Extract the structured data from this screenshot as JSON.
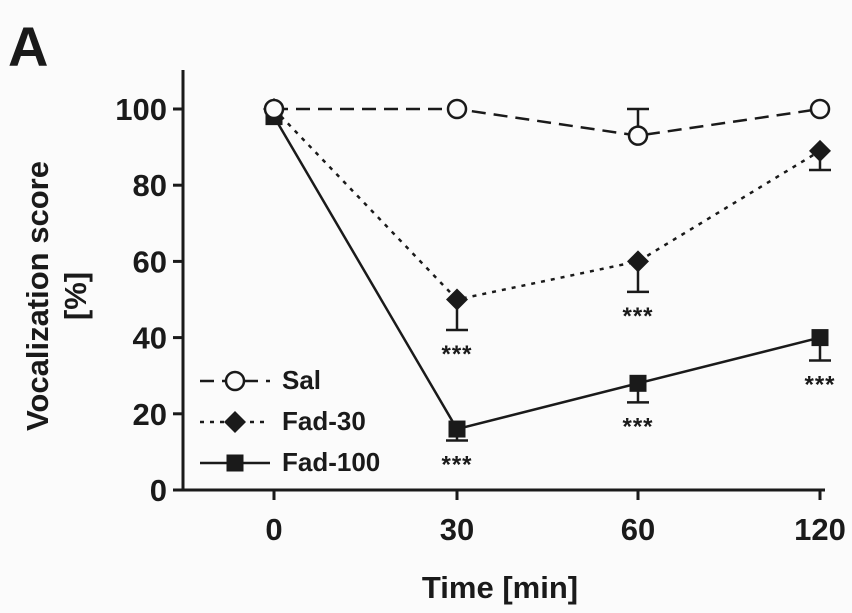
{
  "panel_label": "A",
  "chart_data": {
    "type": "line",
    "title": "",
    "xlabel": "Time [min]",
    "ylabel_lines": [
      "Vocalization score",
      "[%]"
    ],
    "categories": [
      "0",
      "30",
      "60",
      "120"
    ],
    "yticks": [
      0,
      20,
      40,
      60,
      80,
      100
    ],
    "ylim": [
      0,
      110
    ],
    "grid": false,
    "legend_position": "bottom-left",
    "series": [
      {
        "name": "Sal",
        "marker": "open-circle",
        "line_style": "dashed",
        "color": "#1a1a1a",
        "values": [
          100,
          100,
          93,
          100
        ],
        "errors": [
          0,
          0,
          7,
          0
        ],
        "significance": [
          "",
          "",
          "",
          ""
        ]
      },
      {
        "name": "Fad-30",
        "marker": "filled-diamond",
        "line_style": "dotted",
        "color": "#1a1a1a",
        "values": [
          100,
          50,
          60,
          89
        ],
        "errors": [
          0,
          8,
          8,
          5
        ],
        "significance": [
          "",
          "***",
          "***",
          ""
        ]
      },
      {
        "name": "Fad-100",
        "marker": "filled-square",
        "line_style": "solid",
        "color": "#1a1a1a",
        "values": [
          98,
          16,
          28,
          40
        ],
        "errors": [
          0,
          3,
          5,
          6
        ],
        "significance": [
          "",
          "***",
          "***",
          "***"
        ]
      }
    ]
  }
}
